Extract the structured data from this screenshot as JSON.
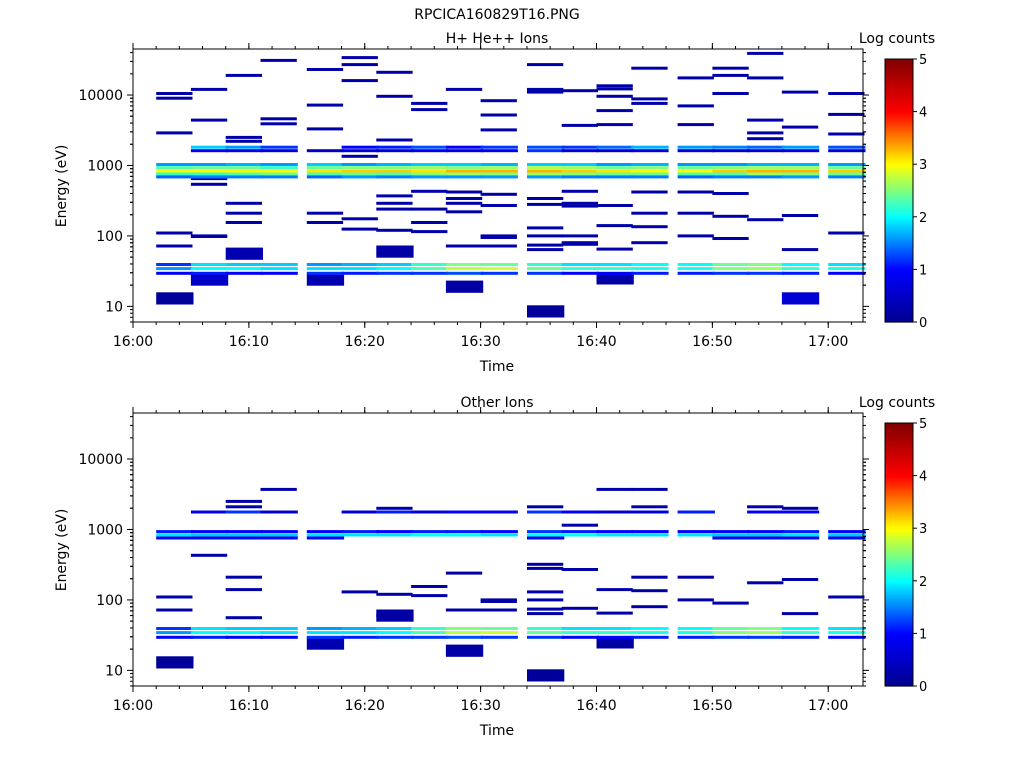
{
  "figure": {
    "title": "RPCICA160829T16.PNG"
  },
  "colors": {
    "colormap": [
      "#00008f",
      "#0000ff",
      "#00ffff",
      "#ffff00",
      "#ff0000",
      "#800000"
    ],
    "axis": "#000000",
    "background": "#ffffff"
  },
  "chart_data": [
    {
      "type": "heatmap",
      "title": "H+ He++ Ions",
      "xlabel": "Time",
      "ylabel": "Energy (eV)",
      "yscale": "log",
      "ylim": [
        6,
        45000
      ],
      "xlim": [
        "16:00",
        "17:03"
      ],
      "x_ticks": [
        "16:00",
        "16:10",
        "16:20",
        "16:30",
        "16:40",
        "16:50",
        "17:00"
      ],
      "y_ticks": [
        "10",
        "100",
        "1000",
        "10000"
      ],
      "colorbar": {
        "label": "Log counts",
        "range": [
          0,
          5
        ],
        "ticks": [
          "0",
          "1",
          "2",
          "3",
          "4",
          "5"
        ]
      },
      "time_bins_start": [
        "16:02",
        "16:05",
        "16:08",
        "16:11",
        "16:15",
        "16:18",
        "16:21",
        "16:24",
        "16:27",
        "16:30",
        "16:34",
        "16:37",
        "16:40",
        "16:43",
        "16:47",
        "16:50",
        "16:53",
        "16:56",
        "17:00"
      ],
      "bands": [
        {
          "energy": 40,
          "values": [
            1.2,
            1.9,
            1.8,
            1.8,
            1.6,
            1.7,
            1.8,
            2.2,
            2.5,
            2.4,
            2.2,
            1.9,
            1.9,
            2.0,
            2.0,
            2.4,
            2.5,
            2.0,
            1.9
          ]
        },
        {
          "energy": 35,
          "values": [
            1.6,
            2.0,
            2.0,
            1.9,
            1.9,
            1.9,
            2.0,
            2.3,
            2.7,
            2.8,
            2.4,
            2.2,
            2.2,
            2.1,
            2.1,
            2.5,
            2.6,
            2.2,
            2.1
          ]
        },
        {
          "energy": 30,
          "values": [
            0.9,
            1.1,
            1.0,
            1.0,
            1.2,
            1.1,
            1.2,
            1.2,
            1.3,
            1.2,
            1.2,
            1.0,
            1.0,
            1.1,
            1.1,
            1.2,
            1.2,
            1.1,
            1.0
          ]
        },
        {
          "energy": 1050,
          "values": [
            1.6,
            1.6,
            1.7,
            1.6,
            1.8,
            1.6,
            1.7,
            1.8,
            1.8,
            1.7,
            1.8,
            1.8,
            1.6,
            1.7,
            1.6,
            1.6,
            1.7,
            1.7,
            1.6
          ]
        },
        {
          "energy": 950,
          "values": [
            2.3,
            2.4,
            2.4,
            2.2,
            2.4,
            2.5,
            2.5,
            2.6,
            2.5,
            2.6,
            2.7,
            2.6,
            2.4,
            2.5,
            2.4,
            2.5,
            2.6,
            2.6,
            2.4
          ]
        },
        {
          "energy": 850,
          "values": [
            3.0,
            3.0,
            3.0,
            3.0,
            3.1,
            3.2,
            3.2,
            3.1,
            3.3,
            3.3,
            3.3,
            3.2,
            3.1,
            3.0,
            3.0,
            3.2,
            3.3,
            3.3,
            3.2
          ]
        },
        {
          "energy": 770,
          "values": [
            2.2,
            2.2,
            2.3,
            2.4,
            2.3,
            2.4,
            2.3,
            2.5,
            2.6,
            2.5,
            2.6,
            2.5,
            2.4,
            2.4,
            2.3,
            2.3,
            2.6,
            2.5,
            2.4
          ]
        },
        {
          "energy": 700,
          "values": [
            1.4,
            1.5,
            1.5,
            1.5,
            1.4,
            1.6,
            1.5,
            1.6,
            1.6,
            1.6,
            1.6,
            1.5,
            1.5,
            1.5,
            1.4,
            1.5,
            1.5,
            1.6,
            1.5
          ]
        },
        {
          "energy": 1850,
          "values": [
            null,
            1.8,
            1.6,
            1.2,
            null,
            1.0,
            1.1,
            1.3,
            1.0,
            1.2,
            1.3,
            1.2,
            1.4,
            1.7,
            1.6,
            1.5,
            1.4,
            1.6,
            1.3
          ]
        },
        {
          "energy": 1650,
          "values": [
            null,
            0.9,
            0.8,
            0.6,
            0.5,
            0.6,
            0.6,
            0.8,
            0.7,
            0.8,
            1.2,
            0.6,
            0.6,
            0.7,
            0.6,
            0.6,
            0.6,
            0.7,
            0.6
          ]
        }
      ],
      "sparse_counts": [
        {
          "time": "16:02",
          "energies": [
            10500,
            9000,
            2900,
            110,
            72
          ]
        },
        {
          "time": "16:05",
          "energies": [
            12000,
            4400,
            650,
            540,
            100,
            98
          ]
        },
        {
          "time": "16:08",
          "energies": [
            19000,
            2500,
            2200,
            290,
            210,
            155
          ]
        },
        {
          "time": "16:11",
          "energies": [
            31000,
            4600,
            3900
          ]
        },
        {
          "time": "16:15",
          "energies": [
            23000,
            7200,
            3300,
            210,
            155
          ]
        },
        {
          "time": "16:18",
          "energies": [
            34000,
            27000,
            16000,
            1350,
            175,
            125
          ]
        },
        {
          "time": "16:21",
          "energies": [
            21000,
            9600,
            2300,
            370,
            290,
            240,
            120
          ]
        },
        {
          "time": "16:24",
          "energies": [
            7600,
            6200,
            430,
            240,
            155,
            115
          ]
        },
        {
          "time": "16:27",
          "energies": [
            12000,
            420,
            340,
            290,
            220,
            72
          ]
        },
        {
          "time": "16:30",
          "energies": [
            8300,
            5200,
            3200,
            390,
            270,
            100,
            95,
            72
          ]
        },
        {
          "time": "16:34",
          "energies": [
            27000,
            12000,
            11000,
            340,
            280,
            130,
            100,
            74,
            64
          ]
        },
        {
          "time": "16:37",
          "energies": [
            11500,
            3700,
            430,
            290,
            265,
            100,
            80,
            76
          ]
        },
        {
          "time": "16:40",
          "energies": [
            13500,
            12200,
            9600,
            6000,
            3800,
            270,
            140,
            65
          ]
        },
        {
          "time": "16:43",
          "energies": [
            24000,
            8800,
            7600,
            420,
            210,
            135,
            80
          ]
        },
        {
          "time": "16:47",
          "energies": [
            17500,
            7000,
            3800,
            420,
            210,
            100
          ]
        },
        {
          "time": "16:50",
          "energies": [
            24000,
            19000,
            10500,
            400,
            190,
            92
          ]
        },
        {
          "time": "16:53",
          "energies": [
            39000,
            17500,
            4400,
            2900,
            2400,
            170
          ]
        },
        {
          "time": "16:56",
          "energies": [
            11000,
            3500,
            195,
            64
          ]
        },
        {
          "time": "17:00",
          "energies": [
            10500,
            5300,
            2800,
            110
          ]
        }
      ],
      "low_energy_bins": [
        {
          "time": "16:02",
          "energy": 13,
          "value": 0.1
        },
        {
          "time": "16:05",
          "energy": 24,
          "value": 0.5
        },
        {
          "time": "16:08",
          "energy": 56,
          "value": 0.3
        },
        {
          "time": "16:15",
          "energy": 24,
          "value": 0.3
        },
        {
          "time": "16:21",
          "energy": 60,
          "value": 0.2
        },
        {
          "time": "16:27",
          "energy": 19,
          "value": 0.2
        },
        {
          "time": "16:34",
          "energy": 8.5,
          "value": 0.1
        },
        {
          "time": "16:40",
          "energy": 25,
          "value": 0.2
        },
        {
          "time": "16:56",
          "energy": 13,
          "value": 0.6
        }
      ]
    },
    {
      "type": "heatmap",
      "title": "Other Ions",
      "xlabel": "Time",
      "ylabel": "Energy (eV)",
      "yscale": "log",
      "ylim": [
        6,
        45000
      ],
      "xlim": [
        "16:00",
        "17:03"
      ],
      "x_ticks": [
        "16:00",
        "16:10",
        "16:20",
        "16:30",
        "16:40",
        "16:50",
        "17:00"
      ],
      "y_ticks": [
        "10",
        "100",
        "1000",
        "10000"
      ],
      "colorbar": {
        "label": "Log counts",
        "range": [
          0,
          5
        ],
        "ticks": [
          "0",
          "1",
          "2",
          "3",
          "4",
          "5"
        ]
      },
      "time_bins_start": [
        "16:02",
        "16:05",
        "16:08",
        "16:11",
        "16:15",
        "16:18",
        "16:21",
        "16:24",
        "16:27",
        "16:30",
        "16:34",
        "16:37",
        "16:40",
        "16:43",
        "16:47",
        "16:50",
        "16:53",
        "16:56",
        "17:00"
      ],
      "bands": [
        {
          "energy": 40,
          "values": [
            1.2,
            1.9,
            1.8,
            1.8,
            1.6,
            1.7,
            1.8,
            2.2,
            2.5,
            2.4,
            2.2,
            1.9,
            1.9,
            2.0,
            2.0,
            2.4,
            2.5,
            2.0,
            1.9
          ]
        },
        {
          "energy": 35,
          "values": [
            1.6,
            2.0,
            2.0,
            1.9,
            1.9,
            1.9,
            2.0,
            2.3,
            2.7,
            2.8,
            2.4,
            2.2,
            2.2,
            2.1,
            2.1,
            2.5,
            2.6,
            2.2,
            2.1
          ]
        },
        {
          "energy": 30,
          "values": [
            0.9,
            1.1,
            1.0,
            1.0,
            1.2,
            1.1,
            1.2,
            1.2,
            1.3,
            1.2,
            1.2,
            1.0,
            1.0,
            1.1,
            1.1,
            1.2,
            1.2,
            1.1,
            1.0
          ]
        },
        {
          "energy": 950,
          "values": [
            1.1,
            1.0,
            1.0,
            0.9,
            1.0,
            1.1,
            1.0,
            1.1,
            1.1,
            1.0,
            1.2,
            1.1,
            1.0,
            1.0,
            1.0,
            1.0,
            1.0,
            1.1,
            1.0
          ]
        },
        {
          "energy": 850,
          "values": [
            1.9,
            1.8,
            1.8,
            1.8,
            1.9,
            1.9,
            1.9,
            2.0,
            2.0,
            1.9,
            2.0,
            2.0,
            1.9,
            1.9,
            1.9,
            1.8,
            1.8,
            1.9,
            1.8
          ]
        },
        {
          "energy": 770,
          "values": [
            0.8,
            0.8,
            0.9,
            0.8,
            0.9,
            null,
            null,
            null,
            null,
            null,
            0.8,
            null,
            null,
            null,
            null,
            0.8,
            0.8,
            0.8,
            0.8
          ]
        },
        {
          "energy": 1800,
          "values": [
            null,
            0.8,
            1.2,
            0.6,
            null,
            0.7,
            1.1,
            0.7,
            1.0,
            0.9,
            1.2,
            0.9,
            0.6,
            0.7,
            1.1,
            null,
            0.9,
            0.9,
            null
          ]
        }
      ],
      "sparse_counts": [
        {
          "time": "16:02",
          "energies": [
            110,
            72
          ]
        },
        {
          "time": "16:05",
          "energies": [
            430
          ]
        },
        {
          "time": "16:08",
          "energies": [
            2500,
            2100,
            210,
            140,
            56
          ]
        },
        {
          "time": "16:11",
          "energies": [
            3700
          ]
        },
        {
          "time": "16:18",
          "energies": [
            130
          ]
        },
        {
          "time": "16:21",
          "energies": [
            2000,
            120,
            60
          ]
        },
        {
          "time": "16:24",
          "energies": [
            155,
            115
          ]
        },
        {
          "time": "16:27",
          "energies": [
            240,
            72
          ]
        },
        {
          "time": "16:30",
          "energies": [
            100,
            95,
            72
          ]
        },
        {
          "time": "16:34",
          "energies": [
            2100,
            320,
            280,
            130,
            100,
            74,
            64
          ]
        },
        {
          "time": "16:37",
          "energies": [
            1150,
            270,
            76
          ]
        },
        {
          "time": "16:40",
          "energies": [
            3700,
            140,
            65
          ]
        },
        {
          "time": "16:43",
          "energies": [
            3700,
            2100,
            210,
            135,
            80
          ]
        },
        {
          "time": "16:47",
          "energies": [
            210,
            100
          ]
        },
        {
          "time": "16:50",
          "energies": [
            90
          ]
        },
        {
          "time": "16:53",
          "energies": [
            2100,
            175
          ]
        },
        {
          "time": "16:56",
          "energies": [
            2000,
            195,
            64
          ]
        },
        {
          "time": "17:00",
          "energies": [
            110
          ]
        }
      ],
      "low_energy_bins": [
        {
          "time": "16:02",
          "energy": 13,
          "value": 0.1
        },
        {
          "time": "16:15",
          "energy": 24,
          "value": 0.3
        },
        {
          "time": "16:21",
          "energy": 60,
          "value": 0.2
        },
        {
          "time": "16:27",
          "energy": 19,
          "value": 0.2
        },
        {
          "time": "16:34",
          "energy": 8.5,
          "value": 0.1
        },
        {
          "time": "16:40",
          "energy": 25,
          "value": 0.2
        }
      ]
    }
  ]
}
